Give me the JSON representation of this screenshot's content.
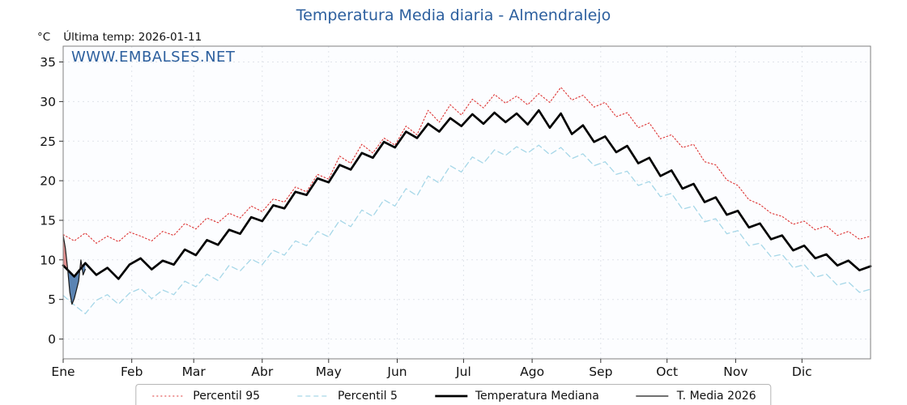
{
  "header": {
    "title": "Temperatura Media diaria - Almendralejo",
    "unit_label": "°C",
    "last_temp_label": "Última temp: 2026-01-11",
    "watermark": "WWW.EMBALSES.NET"
  },
  "colors": {
    "title_blue": "#2c5f9e",
    "percentil95_red": "#dd3333",
    "percentil5_cyan": "#a6d7e8",
    "median_black": "#000000",
    "media2026_dark": "#1a1a1a",
    "fill_above": "#d97b7b",
    "fill_below": "#3e6fa6",
    "grid": "#dfe3ea",
    "axis_border": "#7f7f7f"
  },
  "chart_data": {
    "type": "line",
    "title": "Temperatura Media diaria - Almendralejo",
    "ylabel": "°C",
    "xlabel": "",
    "grid": true,
    "legend_position": "bottom",
    "xlim": [
      0,
      365
    ],
    "ylim": [
      -2.5,
      37
    ],
    "yticks": [
      0,
      5,
      10,
      15,
      20,
      25,
      30,
      35
    ],
    "x_tick_labels": [
      "Ene",
      "Feb",
      "Mar",
      "Abr",
      "May",
      "Jun",
      "Jul",
      "Ago",
      "Sep",
      "Oct",
      "Nov",
      "Dic"
    ],
    "month_start_days": [
      0,
      31,
      59,
      90,
      120,
      151,
      181,
      212,
      243,
      273,
      304,
      334
    ],
    "sample_days": [
      0,
      5,
      10,
      15,
      20,
      25,
      30,
      35,
      40,
      45,
      50,
      55,
      60,
      65,
      70,
      75,
      80,
      85,
      90,
      95,
      100,
      105,
      110,
      115,
      120,
      125,
      130,
      135,
      140,
      145,
      150,
      155,
      160,
      165,
      170,
      175,
      180,
      185,
      190,
      195,
      200,
      205,
      210,
      215,
      220,
      225,
      230,
      235,
      240,
      245,
      250,
      255,
      260,
      265,
      270,
      275,
      280,
      285,
      290,
      295,
      300,
      305,
      310,
      315,
      320,
      325,
      330,
      335,
      340,
      345,
      350,
      355,
      360,
      365
    ],
    "series": [
      {
        "name": "Percentil 95",
        "color": "#dd3333",
        "style": "dotted",
        "width": 1.1,
        "values": [
          13.2,
          12.4,
          13.4,
          12.1,
          13.0,
          12.3,
          13.5,
          13.0,
          12.4,
          13.6,
          13.1,
          14.6,
          13.9,
          15.3,
          14.7,
          15.9,
          15.3,
          16.8,
          16.1,
          17.7,
          17.3,
          19.2,
          18.6,
          20.8,
          20.2,
          23.1,
          22.2,
          24.6,
          23.5,
          25.4,
          24.5,
          26.9,
          25.8,
          28.9,
          27.4,
          29.6,
          28.3,
          30.3,
          29.2,
          30.9,
          29.8,
          30.7,
          29.6,
          31.0,
          29.9,
          31.8,
          30.2,
          30.8,
          29.3,
          29.9,
          28.1,
          28.6,
          26.7,
          27.3,
          25.3,
          25.8,
          24.2,
          24.6,
          22.4,
          22.0,
          20.1,
          19.4,
          17.6,
          17.0,
          15.9,
          15.5,
          14.5,
          14.9,
          13.8,
          14.3,
          13.1,
          13.6,
          12.6,
          13.0
        ]
      },
      {
        "name": "Percentil 5",
        "color": "#a6d7e8",
        "style": "dashed",
        "width": 1.3,
        "values": [
          5.5,
          4.3,
          3.2,
          4.9,
          5.6,
          4.4,
          5.8,
          6.4,
          5.1,
          6.2,
          5.6,
          7.3,
          6.6,
          8.2,
          7.4,
          9.3,
          8.6,
          10.1,
          9.4,
          11.2,
          10.6,
          12.4,
          11.8,
          13.6,
          12.9,
          15.0,
          14.2,
          16.3,
          15.5,
          17.6,
          16.8,
          19.0,
          18.1,
          20.6,
          19.7,
          21.9,
          21.1,
          23.0,
          22.2,
          23.9,
          23.2,
          24.3,
          23.5,
          24.5,
          23.3,
          24.2,
          22.8,
          23.4,
          21.9,
          22.4,
          20.8,
          21.2,
          19.4,
          19.9,
          18.0,
          18.4,
          16.4,
          16.8,
          14.8,
          15.2,
          13.3,
          13.7,
          11.8,
          12.1,
          10.4,
          10.7,
          9.0,
          9.4,
          7.8,
          8.2,
          6.8,
          7.2,
          5.9,
          6.3
        ]
      },
      {
        "name": "Temperatura Mediana",
        "color": "#000000",
        "style": "solid",
        "width": 2.7,
        "values": [
          9.3,
          7.9,
          9.6,
          8.1,
          9.0,
          7.6,
          9.4,
          10.2,
          8.8,
          9.9,
          9.4,
          11.3,
          10.6,
          12.5,
          11.9,
          13.8,
          13.3,
          15.4,
          14.9,
          16.9,
          16.5,
          18.6,
          18.2,
          20.3,
          19.8,
          22.0,
          21.4,
          23.5,
          22.9,
          24.9,
          24.2,
          26.2,
          25.4,
          27.2,
          26.2,
          27.9,
          26.9,
          28.4,
          27.2,
          28.6,
          27.4,
          28.5,
          27.1,
          28.9,
          26.7,
          28.5,
          25.9,
          27.0,
          24.9,
          25.6,
          23.6,
          24.4,
          22.2,
          22.9,
          20.6,
          21.3,
          19.0,
          19.6,
          17.3,
          17.9,
          15.7,
          16.2,
          14.1,
          14.6,
          12.6,
          13.1,
          11.2,
          11.8,
          10.2,
          10.7,
          9.3,
          9.9,
          8.7,
          9.2
        ]
      },
      {
        "name": "T. Media 2026",
        "color": "#1a1a1a",
        "style": "solid",
        "width": 1.2,
        "days": [
          0,
          1,
          2,
          3,
          4,
          5,
          6,
          7,
          8,
          9,
          10
        ],
        "values": [
          13.1,
          11.5,
          8.9,
          5.9,
          4.4,
          5.1,
          6.2,
          7.3,
          10.0,
          8.1,
          8.8
        ]
      }
    ],
    "fills": {
      "target_series": "T. Media 2026",
      "compare_series": "Temperatura Mediana",
      "above_color": "#d97b7b",
      "below_color": "#3e6fa6"
    }
  }
}
